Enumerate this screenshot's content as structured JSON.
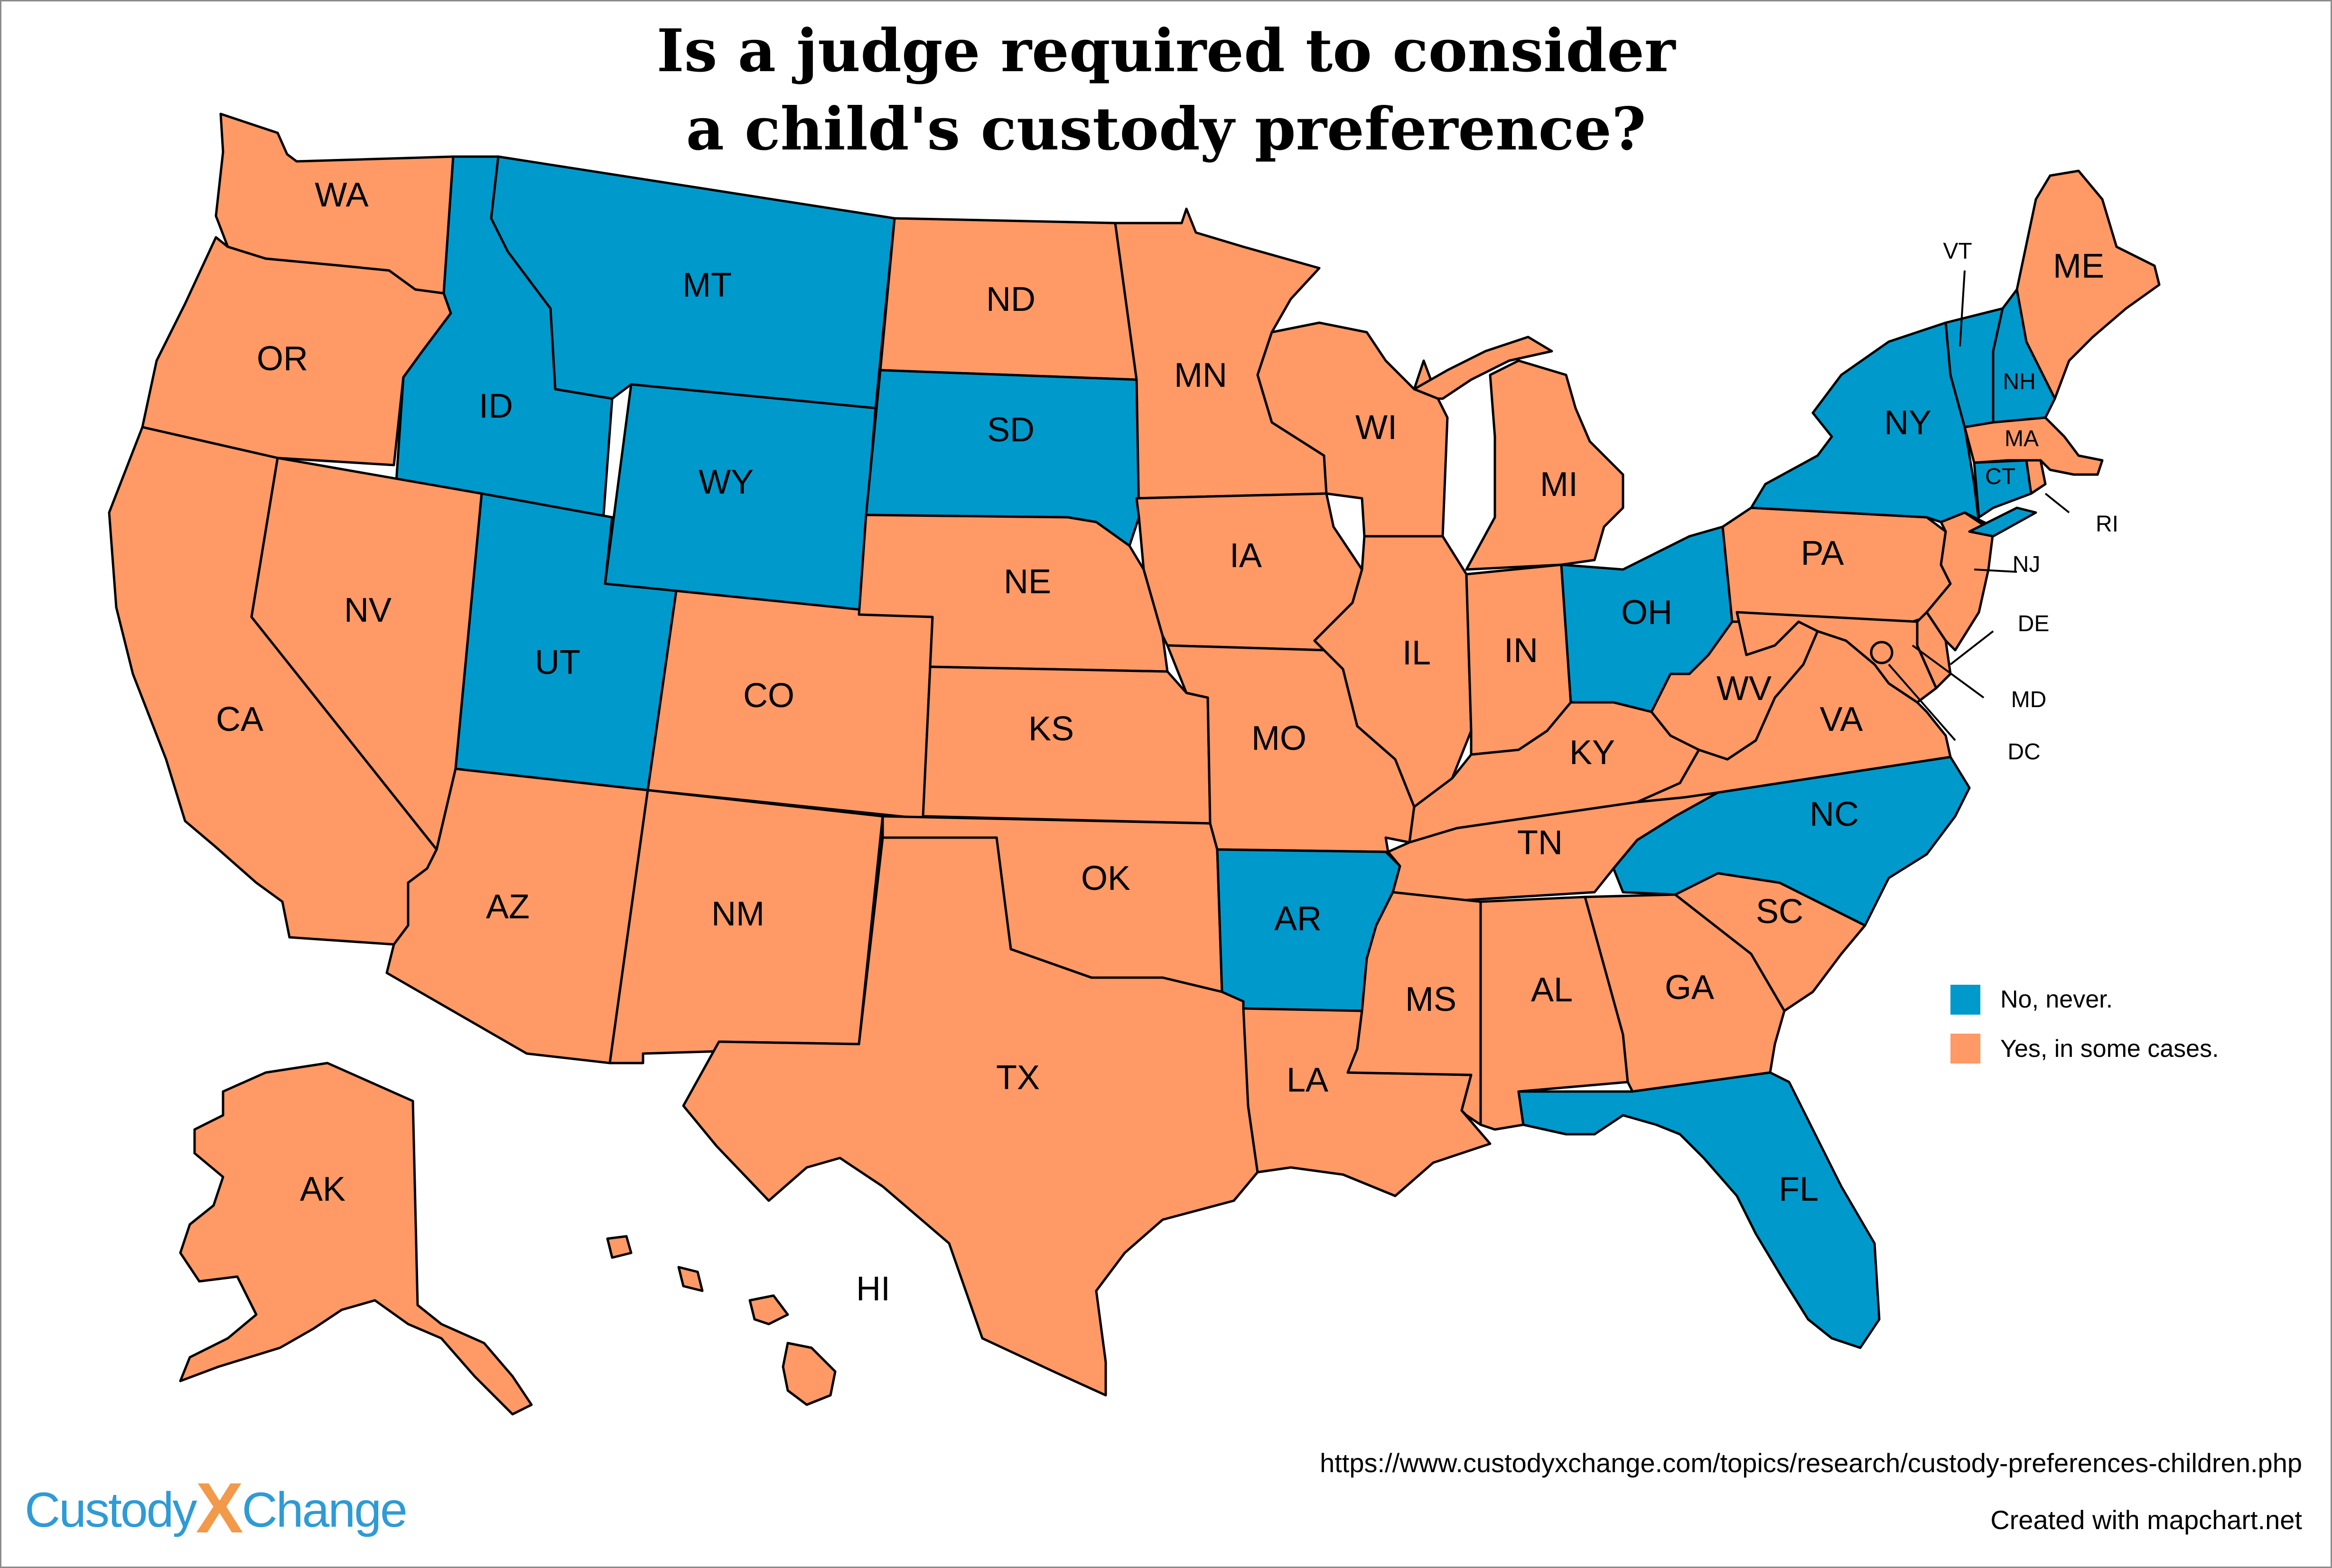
{
  "title": {
    "line1": "Is a judge required to consider",
    "line2": "a child's custody preference?"
  },
  "legend": {
    "items": [
      {
        "label": "No, never.",
        "color": "#0099CC"
      },
      {
        "label": "Yes, in some cases.",
        "color": "#FF9966"
      }
    ]
  },
  "footer": {
    "url": "https://www.custodyxchange.com/topics/research/custody-preferences-children.php",
    "credit": "Created with mapchart.net"
  },
  "logo": {
    "part1": "Custody",
    "x": "X",
    "part2": "Change",
    "blue": "#2E9BD6",
    "orange": "#F2994A"
  },
  "colors": {
    "no": "#0099CC",
    "yes": "#FF9966",
    "border": "#000000"
  },
  "states": {
    "WA": {
      "label": "WA",
      "answer": "yes"
    },
    "OR": {
      "label": "OR",
      "answer": "yes"
    },
    "CA": {
      "label": "CA",
      "answer": "yes"
    },
    "ID": {
      "label": "ID",
      "answer": "no"
    },
    "NV": {
      "label": "NV",
      "answer": "yes"
    },
    "MT": {
      "label": "MT",
      "answer": "no"
    },
    "WY": {
      "label": "WY",
      "answer": "no"
    },
    "UT": {
      "label": "UT",
      "answer": "no"
    },
    "AZ": {
      "label": "AZ",
      "answer": "yes"
    },
    "CO": {
      "label": "CO",
      "answer": "yes"
    },
    "NM": {
      "label": "NM",
      "answer": "yes"
    },
    "ND": {
      "label": "ND",
      "answer": "yes"
    },
    "SD": {
      "label": "SD",
      "answer": "no"
    },
    "NE": {
      "label": "NE",
      "answer": "yes"
    },
    "KS": {
      "label": "KS",
      "answer": "yes"
    },
    "OK": {
      "label": "OK",
      "answer": "yes"
    },
    "TX": {
      "label": "TX",
      "answer": "yes"
    },
    "MN": {
      "label": "MN",
      "answer": "yes"
    },
    "IA": {
      "label": "IA",
      "answer": "yes"
    },
    "MO": {
      "label": "MO",
      "answer": "yes"
    },
    "AR": {
      "label": "AR",
      "answer": "no"
    },
    "LA": {
      "label": "LA",
      "answer": "yes"
    },
    "WI": {
      "label": "WI",
      "answer": "yes"
    },
    "IL": {
      "label": "IL",
      "answer": "yes"
    },
    "MS": {
      "label": "MS",
      "answer": "yes"
    },
    "MI": {
      "label": "MI",
      "answer": "yes"
    },
    "IN": {
      "label": "IN",
      "answer": "yes"
    },
    "KY": {
      "label": "KY",
      "answer": "yes"
    },
    "TN": {
      "label": "TN",
      "answer": "yes"
    },
    "AL": {
      "label": "AL",
      "answer": "yes"
    },
    "OH": {
      "label": "OH",
      "answer": "no"
    },
    "WV": {
      "label": "WV",
      "answer": "yes"
    },
    "VA": {
      "label": "VA",
      "answer": "yes"
    },
    "NC": {
      "label": "NC",
      "answer": "no"
    },
    "SC": {
      "label": "SC",
      "answer": "yes"
    },
    "GA": {
      "label": "GA",
      "answer": "yes"
    },
    "FL": {
      "label": "FL",
      "answer": "no"
    },
    "PA": {
      "label": "PA",
      "answer": "yes"
    },
    "NY": {
      "label": "NY",
      "answer": "no"
    },
    "VT": {
      "label": "VT",
      "answer": "no"
    },
    "NH": {
      "label": "NH",
      "answer": "no"
    },
    "ME": {
      "label": "ME",
      "answer": "yes"
    },
    "MA": {
      "label": "MA",
      "answer": "yes"
    },
    "CT": {
      "label": "CT",
      "answer": "no"
    },
    "RI": {
      "label": "RI",
      "answer": "yes"
    },
    "NJ": {
      "label": "NJ",
      "answer": "yes"
    },
    "DE": {
      "label": "DE",
      "answer": "yes"
    },
    "MD": {
      "label": "MD",
      "answer": "yes"
    },
    "DC": {
      "label": "DC",
      "answer": "yes"
    },
    "AK": {
      "label": "AK",
      "answer": "yes"
    },
    "HI": {
      "label": "HI",
      "answer": "yes"
    }
  }
}
